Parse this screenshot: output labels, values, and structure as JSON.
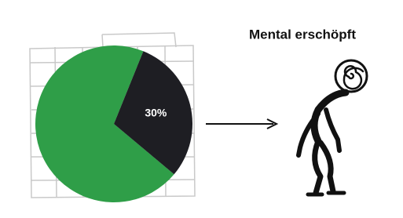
{
  "chart_data": {
    "type": "pie",
    "values": [
      70,
      30
    ],
    "value_labels": [
      null,
      "30%"
    ],
    "colors": [
      "#2f9e48",
      "#1e1e23"
    ],
    "annotation": "Mental erschöpft"
  }
}
